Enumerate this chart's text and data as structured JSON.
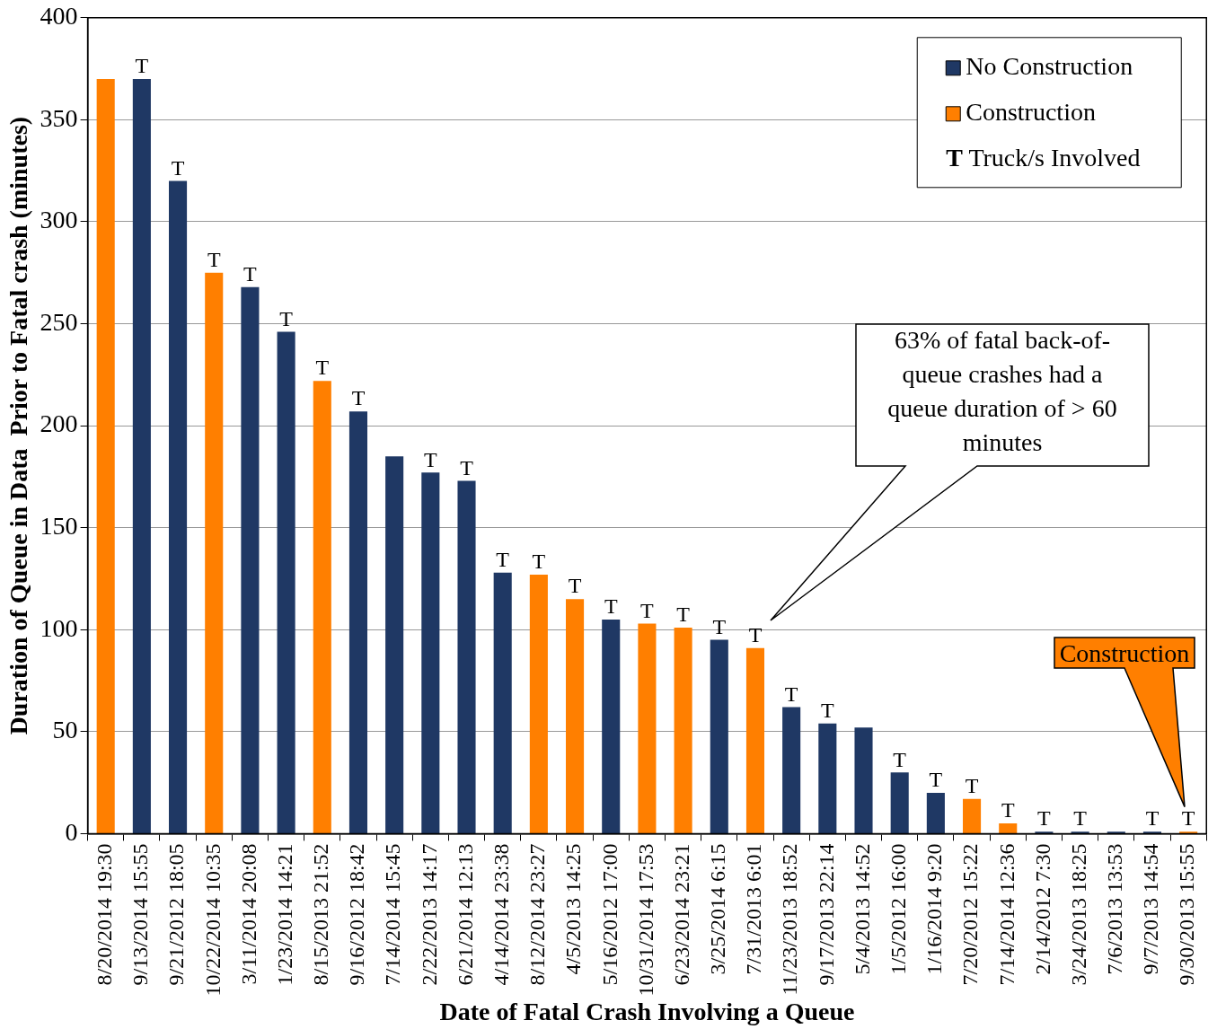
{
  "chart_data": {
    "type": "bar",
    "stacked": true,
    "xlabel": "Date of Fatal Crash Involving a Queue",
    "ylabel": "Duration of Queue in Data  Prior to Fatal crash (minutes)",
    "categories": [
      "8/20/2014 19:30",
      "9/13/2014 15:55",
      "9/21/2012 18:05",
      "10/22/2014 10:35",
      "3/11/2014 20:08",
      "1/23/2014 14:21",
      "8/15/2013 21:52",
      "9/16/2012 18:42",
      "7/14/2014 15:45",
      "2/22/2013 14:17",
      "6/21/2014 12:13",
      "4/14/2014 23:38",
      "8/12/2014 23:27",
      "4/5/2013 14:25",
      "5/16/2012 17:00",
      "10/31/2014 17:53",
      "6/23/2014 23:21",
      "3/25/2014 6:15",
      "7/31/2013 6:01",
      "11/23/2013 18:52",
      "9/17/2013 22:14",
      "5/4/2013 14:52",
      "1/5/2012 16:00",
      "1/16/2014 9:20",
      "7/20/2012 15:22",
      "7/14/2014 12:36",
      "2/14/2012 7:30",
      "3/24/2013 18:25",
      "7/6/2013 13:53",
      "9/7/2013 14:54",
      "9/30/2013 15:55"
    ],
    "series": [
      {
        "name": "No Construction",
        "color": "#1f3864",
        "values": [
          null,
          370,
          320,
          null,
          268,
          246,
          null,
          207,
          185,
          177,
          173,
          128,
          null,
          null,
          105,
          null,
          null,
          95,
          null,
          62,
          54,
          52,
          30,
          20,
          null,
          null,
          1,
          1,
          1,
          1,
          null
        ],
        "value_labels": [
          null,
          "T",
          "T",
          null,
          "T",
          "T",
          null,
          "T",
          null,
          "T",
          "T",
          "T",
          null,
          null,
          "T",
          null,
          null,
          "T",
          null,
          "T",
          "T",
          null,
          "T",
          "T",
          null,
          null,
          "T",
          "T",
          null,
          "T",
          null
        ]
      },
      {
        "name": "Construction",
        "color": "#ff7f00",
        "values": [
          370,
          null,
          null,
          275,
          null,
          null,
          222,
          null,
          null,
          null,
          null,
          null,
          127,
          115,
          null,
          103,
          101,
          null,
          91,
          null,
          null,
          null,
          null,
          null,
          17,
          5,
          null,
          null,
          null,
          null,
          1
        ],
        "value_labels": [
          null,
          null,
          null,
          "T",
          null,
          null,
          "T",
          null,
          null,
          null,
          null,
          null,
          "T",
          "T",
          null,
          "T",
          "T",
          null,
          "T",
          null,
          null,
          null,
          null,
          null,
          "T",
          "T",
          null,
          null,
          null,
          null,
          "T"
        ]
      }
    ],
    "ylim": [
      0,
      400
    ],
    "yticks": [
      0,
      50,
      100,
      150,
      200,
      250,
      300,
      350,
      400
    ],
    "grid": "y",
    "legend": "top right",
    "annotations": [
      "T Truck/s Involved",
      "63% of fatal back-of-queue crashes had a queue duration of > 60 minutes",
      "Construction"
    ]
  }
}
